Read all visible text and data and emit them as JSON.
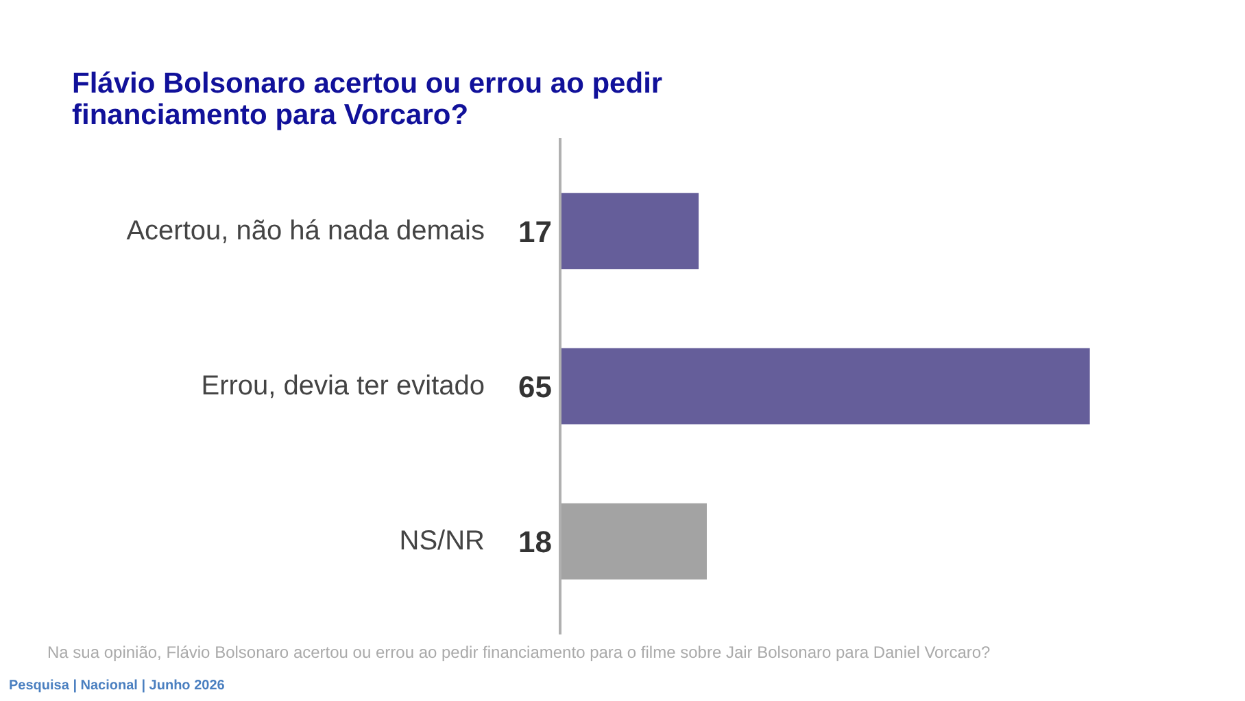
{
  "chart_data": {
    "type": "bar",
    "orientation": "horizontal",
    "title": "Flávio Bolsonaro acertou ou errou ao pedir financiamento para Vorcaro?",
    "categories": [
      "Acertou, não há nada demais",
      "Errou, devia ter evitado",
      "NS/NR"
    ],
    "values": [
      17,
      65,
      18
    ],
    "colors": [
      "#655e9a",
      "#655e9a",
      "#a3a3a3"
    ],
    "data_labels": true,
    "grid": false,
    "annotations": [
      "Na sua opinião, Flávio Bolsonaro acertou ou errou ao pedir financiamento para o filme sobre Jair Bolsonaro para Daniel Vorcaro?",
      "Pesquisa | Nacional | Junho 2026"
    ]
  }
}
